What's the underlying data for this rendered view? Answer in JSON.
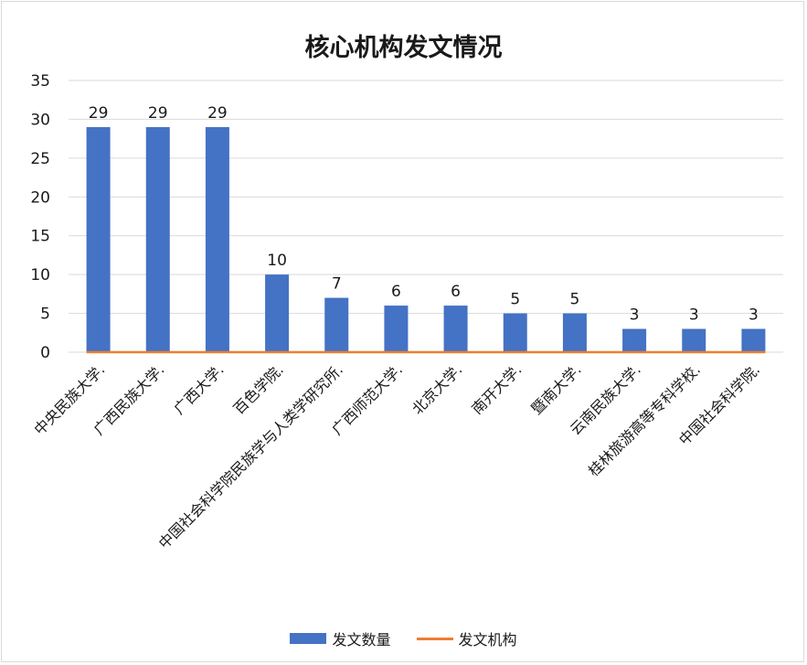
{
  "chart_data": {
    "type": "bar",
    "title": "核心机构发文情况",
    "categories": [
      "中央民族大学.",
      "广西民族大学.",
      "广西大学.",
      "百色学院.",
      "中国社会科学院民族学与人类学研究所.",
      "广西师范大学.",
      "北京大学.",
      "南开大学.",
      "暨南大学.",
      "云南民族大学.",
      "桂林旅游高等专科学校.",
      "中国社会科学院."
    ],
    "series": [
      {
        "name": "发文数量",
        "type": "bar",
        "color": "#4472c4",
        "values": [
          29,
          29,
          29,
          10,
          7,
          6,
          6,
          5,
          5,
          3,
          3,
          3
        ]
      },
      {
        "name": "发文机构",
        "type": "line",
        "color": "#ed7d31",
        "values": [
          0,
          0,
          0,
          0,
          0,
          0,
          0,
          0,
          0,
          0,
          0,
          0
        ]
      }
    ],
    "ylim": [
      0,
      35
    ],
    "yticks": [
      0,
      5,
      10,
      15,
      20,
      25,
      30,
      35
    ],
    "grid": true,
    "legend": "bottom"
  }
}
